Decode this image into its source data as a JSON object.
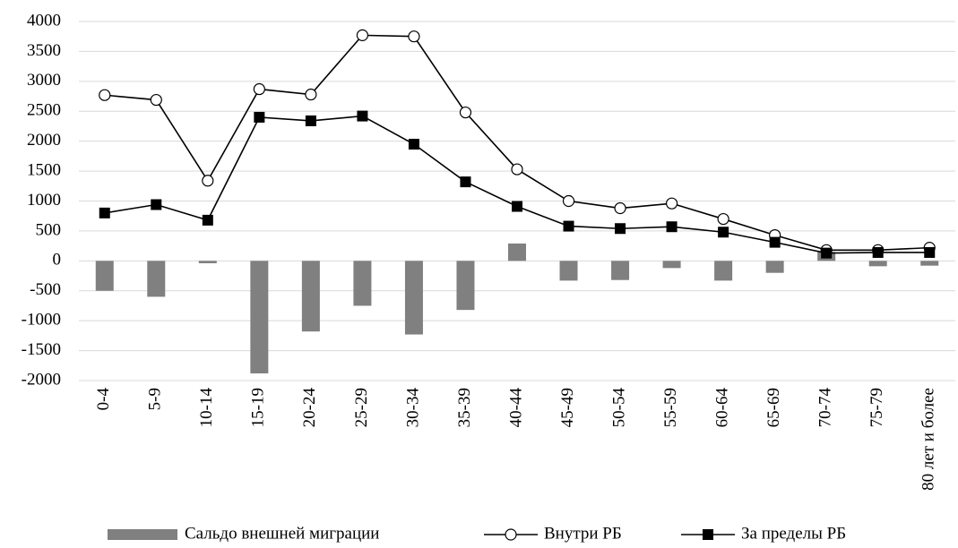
{
  "chart_data": {
    "type": "bar-line",
    "categories": [
      "0-4",
      "5-9",
      "10-14",
      "15-19",
      "20-24",
      "25-29",
      "30-34",
      "35-39",
      "40-44",
      "45-49",
      "50-54",
      "55-59",
      "60-64",
      "65-69",
      "70-74",
      "75-79",
      "80 лет и более"
    ],
    "series": [
      {
        "name": "Сальдо внешней миграции",
        "type": "bar",
        "color": "#808080",
        "values": [
          -500,
          -600,
          -40,
          -1880,
          -1180,
          -750,
          -1230,
          -820,
          290,
          -330,
          -320,
          -120,
          -330,
          -200,
          150,
          -90,
          -80
        ]
      },
      {
        "name": "Внутри РБ",
        "type": "line",
        "marker": "circle",
        "color": "#000000",
        "values": [
          2770,
          2690,
          1340,
          2870,
          2780,
          3770,
          3750,
          2480,
          1530,
          1000,
          880,
          960,
          700,
          430,
          180,
          180,
          220
        ]
      },
      {
        "name": "За пределы РБ",
        "type": "line",
        "marker": "square",
        "color": "#000000",
        "values": [
          800,
          940,
          680,
          2400,
          2340,
          2420,
          1950,
          1320,
          910,
          580,
          540,
          570,
          480,
          310,
          130,
          140,
          140
        ]
      }
    ],
    "ylim": [
      -2000,
      4000
    ],
    "yticks": [
      -2000,
      -1500,
      -1000,
      -500,
      0,
      500,
      1000,
      1500,
      2000,
      2500,
      3000,
      3500,
      4000
    ],
    "grid": true,
    "legend": "bottom"
  }
}
